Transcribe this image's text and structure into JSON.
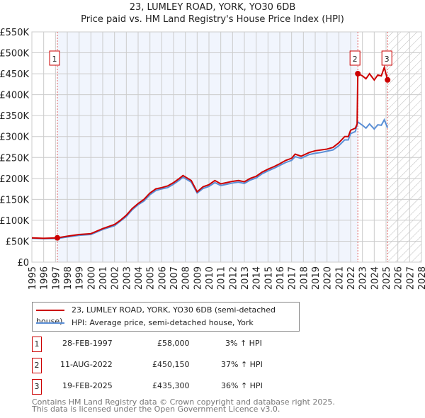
{
  "chart_data": {
    "type": "line",
    "title": "23, LUMLEY ROAD, YORK, YO30 6DB",
    "subtitle": "Price paid vs. HM Land Registry's House Price Index (HPI)",
    "xlim": [
      1995,
      2028
    ],
    "ylim": [
      0,
      550000
    ],
    "y_ticks": [
      0,
      50000,
      100000,
      150000,
      200000,
      250000,
      300000,
      350000,
      400000,
      450000,
      500000,
      550000
    ],
    "y_tick_labels": [
      "£0",
      "£50K",
      "£100K",
      "£150K",
      "£200K",
      "£250K",
      "£300K",
      "£350K",
      "£400K",
      "£450K",
      "£500K",
      "£550K"
    ],
    "x_tick_labels": [
      "1995",
      "1996",
      "1997",
      "1998",
      "1999",
      "2000",
      "2001",
      "2002",
      "2003",
      "2004",
      "2005",
      "2006",
      "2007",
      "2008",
      "2009",
      "2010",
      "2011",
      "2012",
      "2013",
      "2014",
      "2015",
      "2016",
      "2017",
      "2018",
      "2019",
      "2020",
      "2021",
      "2022",
      "2023",
      "2024",
      "2025",
      "2026",
      "2027",
      "2028"
    ],
    "grid": true,
    "series": [
      {
        "name": "23, LUMLEY ROAD, YORK, YO30 6DB (semi-detached house)",
        "color": "#cc0000",
        "x": [
          1995,
          1996,
          1997.16,
          1998,
          1999,
          2000,
          2001,
          2002,
          2002.5,
          2003,
          2003.5,
          2004,
          2004.5,
          2005,
          2005.5,
          2006,
          2006.5,
          2007,
          2007.5,
          2007.8,
          2008.5,
          2009,
          2009.5,
          2010,
          2010.5,
          2011,
          2011.5,
          2012,
          2012.5,
          2013,
          2013.5,
          2014,
          2014.5,
          2015,
          2015.5,
          2016,
          2016.5,
          2017,
          2017.3,
          2017.8,
          2018.5,
          2019,
          2019.5,
          2020,
          2020.5,
          2021,
          2021.5,
          2021.8,
          2022,
          2022.4,
          2022.55,
          2022.61,
          2023,
          2023.3,
          2023.6,
          2024,
          2024.3,
          2024.6,
          2024.85,
          2025.13
        ],
        "y": [
          58000,
          57000,
          58000,
          62000,
          66000,
          68000,
          80000,
          90000,
          100000,
          112000,
          128000,
          140000,
          150000,
          165000,
          175000,
          178000,
          182000,
          190000,
          200000,
          207000,
          195000,
          168000,
          180000,
          185000,
          195000,
          187000,
          190000,
          193000,
          195000,
          192000,
          200000,
          205000,
          215000,
          222000,
          228000,
          235000,
          243000,
          248000,
          258000,
          253000,
          262000,
          266000,
          268000,
          270000,
          274000,
          285000,
          300000,
          300000,
          315000,
          320000,
          330000,
          450150,
          445000,
          438000,
          450000,
          435000,
          447000,
          445000,
          465000,
          435300
        ]
      },
      {
        "name": "HPI: Average price, semi-detached house, York",
        "color": "#5b8fd6",
        "x": [
          1995,
          1996,
          1997.16,
          1998,
          1999,
          2000,
          2001,
          2002,
          2002.5,
          2003,
          2003.5,
          2004,
          2004.5,
          2005,
          2005.5,
          2006,
          2006.5,
          2007,
          2007.5,
          2007.8,
          2008.5,
          2009,
          2009.5,
          2010,
          2010.5,
          2011,
          2011.5,
          2012,
          2012.5,
          2013,
          2013.5,
          2014,
          2014.5,
          2015,
          2015.5,
          2016,
          2016.5,
          2017,
          2017.3,
          2017.8,
          2018.5,
          2019,
          2019.5,
          2020,
          2020.5,
          2021,
          2021.5,
          2021.8,
          2022,
          2022.4,
          2022.6,
          2023,
          2023.3,
          2023.6,
          2024,
          2024.3,
          2024.6,
          2024.85,
          2025.13
        ],
        "y": [
          57000,
          56000,
          56500,
          60000,
          64000,
          66000,
          78000,
          87000,
          98000,
          109000,
          125000,
          137000,
          146000,
          161000,
          171000,
          175000,
          178000,
          186000,
          196000,
          203000,
          191000,
          165000,
          176000,
          181000,
          190000,
          183000,
          186000,
          189000,
          191000,
          188000,
          196000,
          201000,
          211000,
          218000,
          224000,
          231000,
          238000,
          243000,
          252000,
          248000,
          257000,
          260000,
          262000,
          265000,
          268000,
          278000,
          292000,
          292000,
          307000,
          312000,
          335000,
          327000,
          320000,
          330000,
          318000,
          328000,
          327000,
          340000,
          321000
        ]
      }
    ],
    "sales": [
      {
        "label": "1",
        "x": 1997.16,
        "y": 58000
      },
      {
        "label": "2",
        "x": 2022.61,
        "y": 450150
      },
      {
        "label": "3",
        "x": 2025.13,
        "y": 435300
      }
    ],
    "shaded_range": [
      1997.16,
      2022.61
    ],
    "forecast_hatch_from": 2025.13
  },
  "legend": [
    "23, LUMLEY ROAD, YORK, YO30 6DB (semi-detached house)",
    "HPI: Average price, semi-detached house, York"
  ],
  "transactions": [
    {
      "num": "1",
      "date": "28-FEB-1997",
      "price": "£58,000",
      "hpi": "3% ↑ HPI"
    },
    {
      "num": "2",
      "date": "11-AUG-2022",
      "price": "£450,150",
      "hpi": "37% ↑ HPI"
    },
    {
      "num": "3",
      "date": "19-FEB-2025",
      "price": "£435,300",
      "hpi": "36% ↑ HPI"
    }
  ],
  "footer": [
    "Contains HM Land Registry data © Crown copyright and database right 2025.",
    "This data is licensed under the Open Government Licence v3.0."
  ]
}
